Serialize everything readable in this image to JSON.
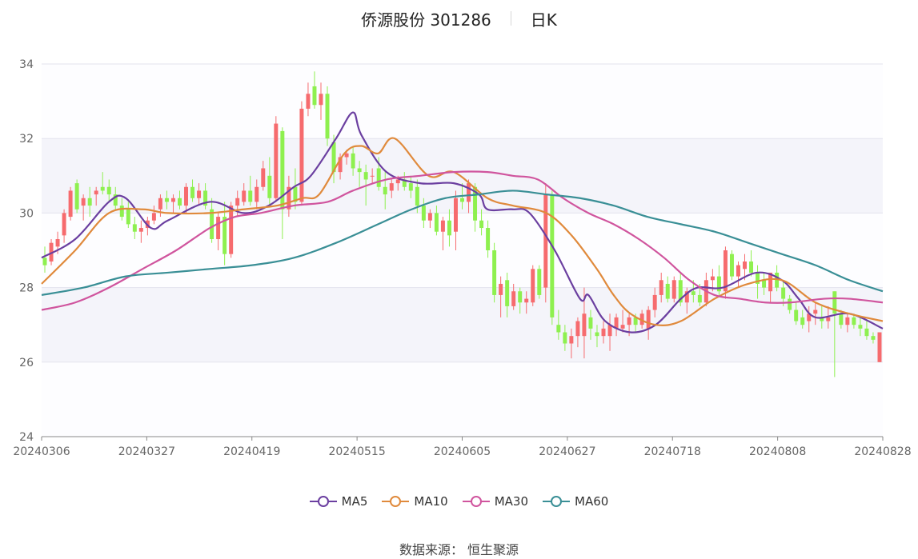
{
  "header": {
    "name": "侨源股份 301286",
    "period": "日K"
  },
  "source_text": "数据来源： 恒生聚源",
  "legend": [
    {
      "label": "MA5",
      "color": "#6b3fa0"
    },
    {
      "label": "MA10",
      "color": "#e08a3c"
    },
    {
      "label": "MA30",
      "color": "#d0559e"
    },
    {
      "label": "MA60",
      "color": "#3a8f96"
    }
  ],
  "colors": {
    "up": "#f66b6e",
    "down": "#8ef04f",
    "grid": "#e3e3ee",
    "band": "#f4f4fa"
  },
  "chart_data": {
    "type": "candlestick",
    "title": "侨源股份 301286 日K",
    "ylim": [
      24,
      34
    ],
    "yticks": [
      24,
      26,
      28,
      30,
      32,
      34
    ],
    "xticks": [
      "20240306",
      "20240327",
      "20240419",
      "20240515",
      "20240605",
      "20240627",
      "20240718",
      "20240808",
      "20240828"
    ],
    "grid": true,
    "legend_position": "bottom",
    "ohlc": [
      [
        28.8,
        29.1,
        28.4,
        28.6
      ],
      [
        28.7,
        29.3,
        28.6,
        29.2
      ],
      [
        29.1,
        29.5,
        28.9,
        29.3
      ],
      [
        29.4,
        30.1,
        29.2,
        30.0
      ],
      [
        29.9,
        30.7,
        29.8,
        30.6
      ],
      [
        30.8,
        30.9,
        30.0,
        30.1
      ],
      [
        30.2,
        30.5,
        29.8,
        30.4
      ],
      [
        30.4,
        30.7,
        29.9,
        30.2
      ],
      [
        30.5,
        30.7,
        30.2,
        30.6
      ],
      [
        30.7,
        31.1,
        30.5,
        30.6
      ],
      [
        30.7,
        30.9,
        30.3,
        30.5
      ],
      [
        30.5,
        30.7,
        30.1,
        30.2
      ],
      [
        30.2,
        30.4,
        29.8,
        29.9
      ],
      [
        30.1,
        30.3,
        29.6,
        29.7
      ],
      [
        29.7,
        29.9,
        29.3,
        29.5
      ],
      [
        29.5,
        29.8,
        29.2,
        29.6
      ],
      [
        29.6,
        29.9,
        29.4,
        29.8
      ],
      [
        29.8,
        30.2,
        29.7,
        30.0
      ],
      [
        30.1,
        30.5,
        29.9,
        30.4
      ],
      [
        30.4,
        30.6,
        30.1,
        30.3
      ],
      [
        30.3,
        30.5,
        30.0,
        30.4
      ],
      [
        30.4,
        30.6,
        30.1,
        30.2
      ],
      [
        30.2,
        30.8,
        30.0,
        30.7
      ],
      [
        30.7,
        30.9,
        30.3,
        30.4
      ],
      [
        30.4,
        30.8,
        30.2,
        30.6
      ],
      [
        30.6,
        30.8,
        30.1,
        30.2
      ],
      [
        30.1,
        30.4,
        29.2,
        29.3
      ],
      [
        29.3,
        30.0,
        29.0,
        29.9
      ],
      [
        29.9,
        30.3,
        28.6,
        28.9
      ],
      [
        28.9,
        30.3,
        28.8,
        30.2
      ],
      [
        30.2,
        30.6,
        29.9,
        30.4
      ],
      [
        30.3,
        30.8,
        30.2,
        30.6
      ],
      [
        30.6,
        31.0,
        30.2,
        30.3
      ],
      [
        30.3,
        30.9,
        30.1,
        30.7
      ],
      [
        30.7,
        31.4,
        30.6,
        31.2
      ],
      [
        31.0,
        31.5,
        30.2,
        30.4
      ],
      [
        30.4,
        32.6,
        30.3,
        32.4
      ],
      [
        32.2,
        32.3,
        29.3,
        30.1
      ],
      [
        30.1,
        31.0,
        29.9,
        30.7
      ],
      [
        30.7,
        31.2,
        30.1,
        30.3
      ],
      [
        30.3,
        33.0,
        30.2,
        32.8
      ],
      [
        32.8,
        33.5,
        32.6,
        33.2
      ],
      [
        33.4,
        33.8,
        32.8,
        32.9
      ],
      [
        32.9,
        33.5,
        32.5,
        33.2
      ],
      [
        33.2,
        33.4,
        31.8,
        32.0
      ],
      [
        31.9,
        32.1,
        30.8,
        31.1
      ],
      [
        31.1,
        31.6,
        30.9,
        31.5
      ],
      [
        31.5,
        31.7,
        31.3,
        31.6
      ],
      [
        31.6,
        31.8,
        31.0,
        31.2
      ],
      [
        31.2,
        31.4,
        30.7,
        31.1
      ],
      [
        31.1,
        31.3,
        30.2,
        30.9
      ],
      [
        31.0,
        31.2,
        30.8,
        31.0
      ],
      [
        31.2,
        31.5,
        30.6,
        30.7
      ],
      [
        30.7,
        31.1,
        30.1,
        30.5
      ],
      [
        30.6,
        30.9,
        30.4,
        30.8
      ],
      [
        30.8,
        31.0,
        30.6,
        30.9
      ],
      [
        30.9,
        31.1,
        30.6,
        30.7
      ],
      [
        30.8,
        31.0,
        30.4,
        30.6
      ],
      [
        30.7,
        30.9,
        30.0,
        30.2
      ],
      [
        30.2,
        30.4,
        29.6,
        29.8
      ],
      [
        29.8,
        30.1,
        29.6,
        30.0
      ],
      [
        30.0,
        30.2,
        29.4,
        29.5
      ],
      [
        29.5,
        29.9,
        29.0,
        29.8
      ],
      [
        29.8,
        30.1,
        29.1,
        29.4
      ],
      [
        29.5,
        30.6,
        29.0,
        30.4
      ],
      [
        30.4,
        30.8,
        30.1,
        30.3
      ],
      [
        30.3,
        30.9,
        30.0,
        30.8
      ],
      [
        30.7,
        30.8,
        29.5,
        29.8
      ],
      [
        29.8,
        30.1,
        29.4,
        29.6
      ],
      [
        29.6,
        29.8,
        28.8,
        29.0
      ],
      [
        29.0,
        29.2,
        27.6,
        27.8
      ],
      [
        27.8,
        28.3,
        27.2,
        28.1
      ],
      [
        28.2,
        28.4,
        27.2,
        27.5
      ],
      [
        27.5,
        28.1,
        27.4,
        27.9
      ],
      [
        27.9,
        28.0,
        27.3,
        27.6
      ],
      [
        27.6,
        27.9,
        27.3,
        27.7
      ],
      [
        27.6,
        28.6,
        27.5,
        28.5
      ],
      [
        28.5,
        28.6,
        27.7,
        27.8
      ],
      [
        28.0,
        30.8,
        27.6,
        30.5
      ],
      [
        30.5,
        30.6,
        27.0,
        27.2
      ],
      [
        27.0,
        27.4,
        26.6,
        26.8
      ],
      [
        26.8,
        27.0,
        26.3,
        26.5
      ],
      [
        26.5,
        26.9,
        26.1,
        26.7
      ],
      [
        26.7,
        27.2,
        26.4,
        27.1
      ],
      [
        26.7,
        28.0,
        26.1,
        27.3
      ],
      [
        27.2,
        27.4,
        26.6,
        26.9
      ],
      [
        26.8,
        27.0,
        26.4,
        26.7
      ],
      [
        26.7,
        27.1,
        26.5,
        26.9
      ],
      [
        26.7,
        27.3,
        26.3,
        27.0
      ],
      [
        26.9,
        27.3,
        26.7,
        27.2
      ],
      [
        26.9,
        27.4,
        26.8,
        27.0
      ],
      [
        27.0,
        27.3,
        26.7,
        27.2
      ],
      [
        27.2,
        27.3,
        26.8,
        27.0
      ],
      [
        27.0,
        27.4,
        26.9,
        27.3
      ],
      [
        26.9,
        27.5,
        26.6,
        27.4
      ],
      [
        27.4,
        28.0,
        27.2,
        27.8
      ],
      [
        27.8,
        28.4,
        27.6,
        28.2
      ],
      [
        28.1,
        28.3,
        27.6,
        27.7
      ],
      [
        27.7,
        28.3,
        27.6,
        28.2
      ],
      [
        28.2,
        28.4,
        27.5,
        27.6
      ],
      [
        27.6,
        28.0,
        27.3,
        27.9
      ],
      [
        27.9,
        28.2,
        27.6,
        27.8
      ],
      [
        27.8,
        28.1,
        27.5,
        27.6
      ],
      [
        27.6,
        28.4,
        27.5,
        28.2
      ],
      [
        28.2,
        28.5,
        27.9,
        28.3
      ],
      [
        28.3,
        28.6,
        27.8,
        27.9
      ],
      [
        27.9,
        29.1,
        27.7,
        29.0
      ],
      [
        28.9,
        29.0,
        28.2,
        28.3
      ],
      [
        28.3,
        28.7,
        28.0,
        28.6
      ],
      [
        28.5,
        28.9,
        28.2,
        28.7
      ],
      [
        28.7,
        29.0,
        28.3,
        28.4
      ],
      [
        28.4,
        28.6,
        27.7,
        28.1
      ],
      [
        28.2,
        28.4,
        27.8,
        28.0
      ],
      [
        27.9,
        28.4,
        27.6,
        28.4
      ],
      [
        28.4,
        28.6,
        27.9,
        28.0
      ],
      [
        28.0,
        28.2,
        27.5,
        27.7
      ],
      [
        27.7,
        27.8,
        27.3,
        27.4
      ],
      [
        27.4,
        27.6,
        27.0,
        27.1
      ],
      [
        27.2,
        27.4,
        26.9,
        27.0
      ],
      [
        27.1,
        27.5,
        26.8,
        27.3
      ],
      [
        27.3,
        27.6,
        27.0,
        27.4
      ],
      [
        27.2,
        27.5,
        26.9,
        27.1
      ],
      [
        27.1,
        27.5,
        26.9,
        27.2
      ],
      [
        27.9,
        27.9,
        25.6,
        27.3
      ],
      [
        27.3,
        27.4,
        26.9,
        27.0
      ],
      [
        27.0,
        27.3,
        26.8,
        27.2
      ],
      [
        27.2,
        27.3,
        26.9,
        27.0
      ],
      [
        27.0,
        27.2,
        26.7,
        26.9
      ],
      [
        26.9,
        27.1,
        26.6,
        26.7
      ],
      [
        26.7,
        26.8,
        26.5,
        26.6
      ],
      [
        26.0,
        26.8,
        26.0,
        26.8
      ]
    ],
    "ma_lines": {
      "MA5": [
        [
          0,
          28.8
        ],
        [
          0.04,
          29.3
        ],
        [
          0.08,
          30.3
        ],
        [
          0.1,
          30.4
        ],
        [
          0.13,
          29.6
        ],
        [
          0.15,
          29.8
        ],
        [
          0.2,
          30.3
        ],
        [
          0.24,
          30.0
        ],
        [
          0.27,
          30.2
        ],
        [
          0.3,
          30.7
        ],
        [
          0.32,
          31.0
        ],
        [
          0.35,
          32.0
        ],
        [
          0.37,
          32.7
        ],
        [
          0.38,
          32.1
        ],
        [
          0.41,
          31.1
        ],
        [
          0.45,
          30.8
        ],
        [
          0.49,
          30.8
        ],
        [
          0.52,
          30.5
        ],
        [
          0.53,
          30.1
        ],
        [
          0.56,
          30.1
        ],
        [
          0.58,
          30.0
        ],
        [
          0.61,
          29.0
        ],
        [
          0.64,
          27.7
        ],
        [
          0.65,
          27.8
        ],
        [
          0.67,
          27.1
        ],
        [
          0.7,
          26.8
        ],
        [
          0.73,
          27.0
        ],
        [
          0.76,
          27.7
        ],
        [
          0.78,
          28.0
        ],
        [
          0.81,
          28.0
        ],
        [
          0.85,
          28.4
        ],
        [
          0.88,
          28.2
        ],
        [
          0.9,
          27.7
        ],
        [
          0.92,
          27.2
        ],
        [
          0.96,
          27.3
        ],
        [
          1.0,
          26.9
        ]
      ],
      "MA10": [
        [
          0,
          28.1
        ],
        [
          0.04,
          29.0
        ],
        [
          0.08,
          30.0
        ],
        [
          0.12,
          30.1
        ],
        [
          0.15,
          30.0
        ],
        [
          0.2,
          30.0
        ],
        [
          0.24,
          30.1
        ],
        [
          0.28,
          30.2
        ],
        [
          0.31,
          30.4
        ],
        [
          0.33,
          30.5
        ],
        [
          0.36,
          31.6
        ],
        [
          0.38,
          31.8
        ],
        [
          0.4,
          31.6
        ],
        [
          0.42,
          32.0
        ],
        [
          0.46,
          31.0
        ],
        [
          0.49,
          31.1
        ],
        [
          0.53,
          30.4
        ],
        [
          0.56,
          30.2
        ],
        [
          0.6,
          30.0
        ],
        [
          0.63,
          29.4
        ],
        [
          0.66,
          28.5
        ],
        [
          0.68,
          27.8
        ],
        [
          0.7,
          27.3
        ],
        [
          0.73,
          27.0
        ],
        [
          0.76,
          27.1
        ],
        [
          0.8,
          27.7
        ],
        [
          0.84,
          28.1
        ],
        [
          0.88,
          28.2
        ],
        [
          0.92,
          27.6
        ],
        [
          0.96,
          27.3
        ],
        [
          1.0,
          27.1
        ]
      ],
      "MA30": [
        [
          0,
          27.4
        ],
        [
          0.04,
          27.6
        ],
        [
          0.08,
          28.0
        ],
        [
          0.12,
          28.5
        ],
        [
          0.16,
          29.0
        ],
        [
          0.2,
          29.6
        ],
        [
          0.23,
          29.9
        ],
        [
          0.26,
          30.0
        ],
        [
          0.3,
          30.2
        ],
        [
          0.34,
          30.3
        ],
        [
          0.37,
          30.6
        ],
        [
          0.41,
          30.9
        ],
        [
          0.45,
          31.0
        ],
        [
          0.49,
          31.1
        ],
        [
          0.53,
          31.1
        ],
        [
          0.56,
          31.0
        ],
        [
          0.59,
          30.9
        ],
        [
          0.62,
          30.4
        ],
        [
          0.65,
          30.0
        ],
        [
          0.68,
          29.7
        ],
        [
          0.71,
          29.3
        ],
        [
          0.74,
          28.8
        ],
        [
          0.77,
          28.2
        ],
        [
          0.8,
          27.8
        ],
        [
          0.83,
          27.7
        ],
        [
          0.86,
          27.6
        ],
        [
          0.89,
          27.6
        ],
        [
          0.93,
          27.7
        ],
        [
          0.96,
          27.7
        ],
        [
          1.0,
          27.6
        ]
      ],
      "MA60": [
        [
          0,
          27.8
        ],
        [
          0.05,
          28.0
        ],
        [
          0.1,
          28.3
        ],
        [
          0.15,
          28.4
        ],
        [
          0.2,
          28.5
        ],
        [
          0.25,
          28.6
        ],
        [
          0.3,
          28.8
        ],
        [
          0.35,
          29.2
        ],
        [
          0.4,
          29.7
        ],
        [
          0.44,
          30.1
        ],
        [
          0.48,
          30.4
        ],
        [
          0.52,
          30.5
        ],
        [
          0.56,
          30.6
        ],
        [
          0.6,
          30.5
        ],
        [
          0.64,
          30.4
        ],
        [
          0.68,
          30.2
        ],
        [
          0.72,
          29.9
        ],
        [
          0.76,
          29.7
        ],
        [
          0.8,
          29.5
        ],
        [
          0.84,
          29.2
        ],
        [
          0.88,
          28.9
        ],
        [
          0.92,
          28.6
        ],
        [
          0.96,
          28.2
        ],
        [
          1.0,
          27.9
        ]
      ]
    }
  }
}
